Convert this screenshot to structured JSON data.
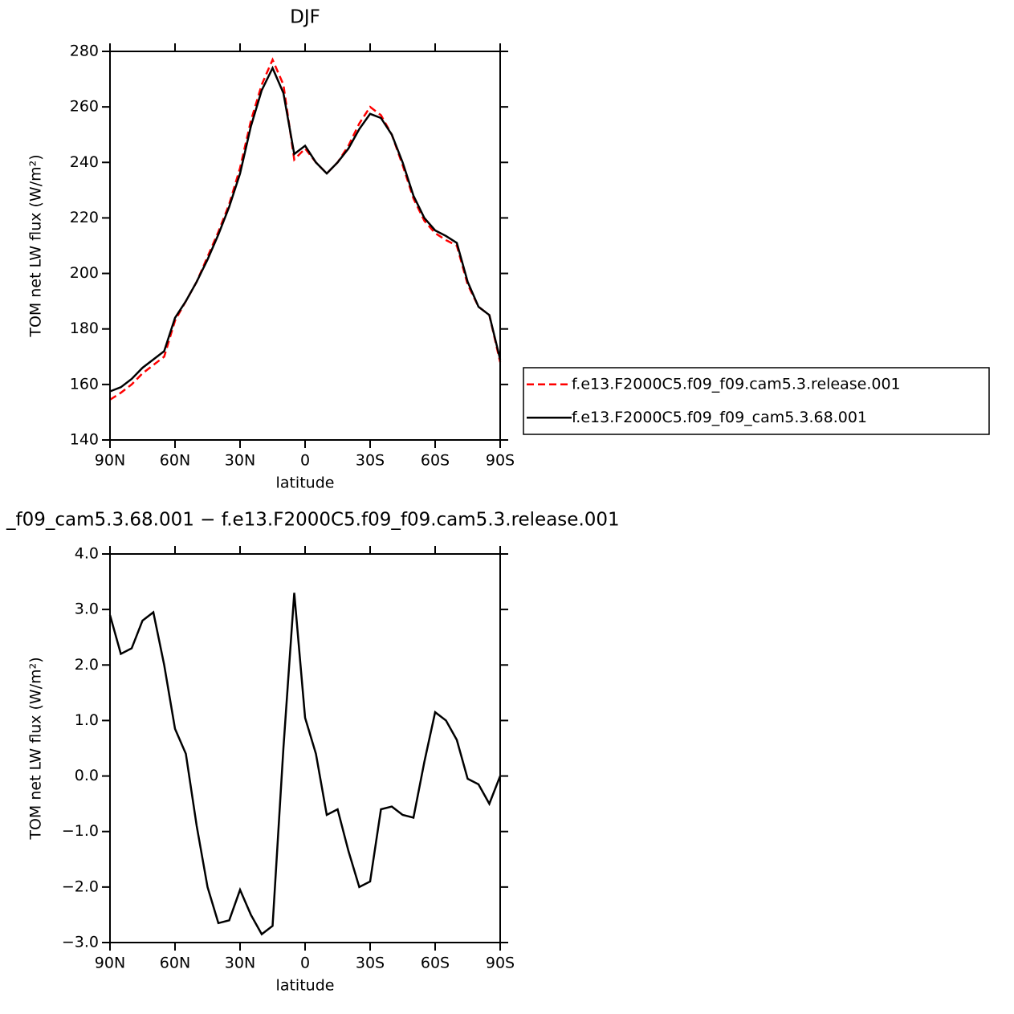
{
  "chart_data": [
    {
      "type": "line",
      "title": "DJF",
      "x_label": "latitude",
      "y_label": "TOM net LW flux (W/m²)",
      "x": [
        90,
        85,
        80,
        75,
        70,
        65,
        60,
        55,
        50,
        45,
        40,
        35,
        30,
        25,
        20,
        15,
        10,
        5,
        0,
        -5,
        -10,
        -15,
        -20,
        -25,
        -30,
        -35,
        -40,
        -45,
        -50,
        -55,
        -60,
        -65,
        -70,
        -75,
        -80,
        -85,
        -90
      ],
      "xlim": [
        90,
        -90
      ],
      "xticks": [
        {
          "value": 90,
          "label": "90N"
        },
        {
          "value": 60,
          "label": "60N"
        },
        {
          "value": 30,
          "label": "30N"
        },
        0,
        {
          "value": -30,
          "label": "30S"
        },
        {
          "value": -60,
          "label": "60S"
        },
        {
          "value": -90,
          "label": "90S"
        }
      ],
      "ylim": [
        140,
        280
      ],
      "yticks": [
        140,
        160,
        180,
        200,
        220,
        240,
        260,
        280
      ],
      "series": [
        {
          "name": "f.e13.F2000C5.f09_f09.cam5.3.release.001",
          "color": "#ff0000",
          "dash": true,
          "values": [
            154.5,
            157,
            160,
            164,
            167,
            170,
            183,
            190,
            197,
            206,
            215,
            225,
            238,
            255,
            268,
            277,
            268,
            241,
            245,
            240,
            236,
            240,
            246,
            254,
            260,
            257,
            250,
            239,
            227,
            219,
            214.5,
            212,
            210,
            196,
            188,
            185,
            168
          ]
        },
        {
          "name": "f.e13.F2000C5.f09_f09_cam5.3.68.001",
          "color": "#000000",
          "dash": false,
          "values": [
            157.5,
            159,
            162,
            166,
            169,
            172,
            184,
            190,
            197,
            205,
            214,
            224,
            236,
            253,
            266,
            274,
            265,
            243,
            246,
            240,
            236,
            240,
            245,
            252,
            257.5,
            256,
            250,
            240,
            228,
            220,
            215.5,
            213.5,
            211,
            197,
            188,
            185,
            169
          ]
        }
      ]
    },
    {
      "type": "line",
      "title": "_f09_cam5.3.68.001 − f.e13.F2000C5.f09_f09.cam5.3.release.001",
      "x_label": "latitude",
      "y_label": "TOM net LW flux (W/m²)",
      "x": [
        90,
        85,
        80,
        75,
        70,
        65,
        60,
        55,
        50,
        45,
        40,
        35,
        30,
        25,
        20,
        15,
        10,
        5,
        0,
        -5,
        -10,
        -15,
        -20,
        -25,
        -30,
        -35,
        -40,
        -45,
        -50,
        -55,
        -60,
        -65,
        -70,
        -75,
        -80,
        -85,
        -90
      ],
      "xlim": [
        90,
        -90
      ],
      "xticks": [
        {
          "value": 90,
          "label": "90N"
        },
        {
          "value": 60,
          "label": "60N"
        },
        {
          "value": 30,
          "label": "30N"
        },
        0,
        {
          "value": -30,
          "label": "30S"
        },
        {
          "value": -60,
          "label": "60S"
        },
        {
          "value": -90,
          "label": "90S"
        }
      ],
      "ylim": [
        -3,
        4
      ],
      "yticks": [
        {
          "value": -3,
          "label": "−3.0"
        },
        {
          "value": -2,
          "label": "−2.0"
        },
        {
          "value": -1,
          "label": "−1.0"
        },
        {
          "value": 0,
          "label": "0.0"
        },
        {
          "value": 1,
          "label": "1.0"
        },
        {
          "value": 2,
          "label": "2.0"
        },
        {
          "value": 3,
          "label": "3.0"
        },
        {
          "value": 4,
          "label": "4.0"
        }
      ],
      "series": [
        {
          "color": "#000000",
          "dash": false,
          "values": [
            2.9,
            2.2,
            2.3,
            2.8,
            2.95,
            2.0,
            0.85,
            0.4,
            -0.9,
            -2.0,
            -2.65,
            -2.6,
            -2.05,
            -2.5,
            -2.85,
            -2.7,
            0.5,
            3.3,
            1.05,
            0.4,
            -0.7,
            -0.6,
            -1.35,
            -2.0,
            -1.9,
            -0.6,
            -0.55,
            -0.7,
            -0.75,
            0.25,
            1.15,
            1.0,
            0.65,
            -0.05,
            -0.15,
            -0.5,
            0.0
          ]
        }
      ]
    }
  ]
}
